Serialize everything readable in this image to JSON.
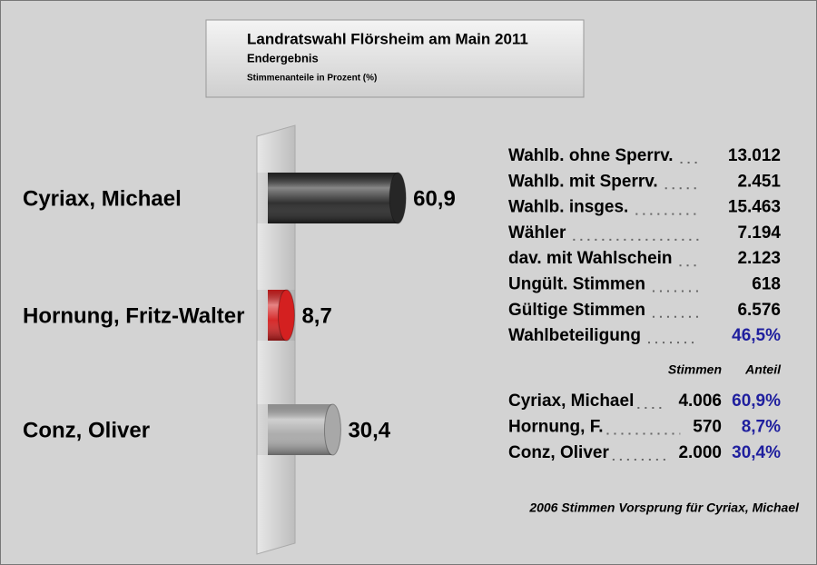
{
  "chart_data": {
    "type": "bar",
    "title": "Landratswahl Flörsheim am Main 2011",
    "subtitle": "Endergebnis",
    "unit_label": "Stimmenanteile in Prozent (%)",
    "categories": [
      "Cyriax, Michael",
      "Hornung, Fritz-Walter",
      "Conz, Oliver"
    ],
    "values": [
      60.9,
      8.7,
      30.4
    ],
    "value_labels": [
      "60,9",
      "8,7",
      "30,4"
    ],
    "colors": [
      "#262626",
      "#d42020",
      "#a8a8a8"
    ]
  },
  "stats": {
    "rows": [
      [
        "Wahlb. ohne Sperrv.",
        "13.012"
      ],
      [
        "Wahlb. mit Sperrv.",
        "2.451"
      ],
      [
        "Wahlb. insges.",
        "15.463"
      ],
      [
        "Wähler",
        "7.194"
      ],
      [
        "dav. mit Wahlschein",
        "2.123"
      ],
      [
        "Ungült. Stimmen",
        "618"
      ],
      [
        "Gültige Stimmen",
        "6.576"
      ],
      [
        "Wahlbeteiligung",
        "46,5%"
      ]
    ]
  },
  "results": {
    "headers": [
      "Stimmen",
      "Anteil"
    ],
    "rows": [
      [
        "Cyriax, Michael",
        "4.006",
        "60,9%"
      ],
      [
        "Hornung, F.",
        "570",
        "8,7%"
      ],
      [
        "Conz, Oliver",
        "2.000",
        "30,4%"
      ]
    ]
  },
  "note": "2006 Stimmen Vorsprung für Cyriax, Michael"
}
